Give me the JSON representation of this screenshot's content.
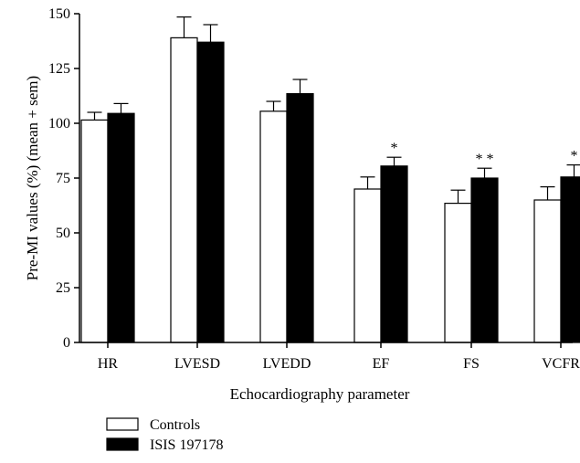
{
  "chart_data": {
    "type": "bar",
    "xlabel": "Echocardiography parameter",
    "ylabel": "Pre-MI values (%) (mean + sem)",
    "ylim": [
      0,
      150
    ],
    "yticks": [
      0,
      25,
      50,
      75,
      100,
      125,
      150
    ],
    "categories": [
      "HR",
      "LVESD",
      "LVEDD",
      "EF",
      "FS",
      "VCFR"
    ],
    "series": [
      {
        "name": "Controls",
        "fill": "#ffffff",
        "values": [
          101.5,
          139,
          105.5,
          70,
          63.5,
          65
        ],
        "errors": [
          3.5,
          9.5,
          4.5,
          5.5,
          6,
          6
        ]
      },
      {
        "name": "ISIS 197178",
        "fill": "#000000",
        "values": [
          104.5,
          137,
          113.5,
          80.5,
          75,
          75.5
        ],
        "errors": [
          4.5,
          8,
          6.5,
          4,
          4.5,
          5.5
        ]
      }
    ],
    "significance": [
      "",
      "",
      "",
      "*",
      "**",
      "*"
    ],
    "legend_position": "bottom-left",
    "grid": false
  }
}
